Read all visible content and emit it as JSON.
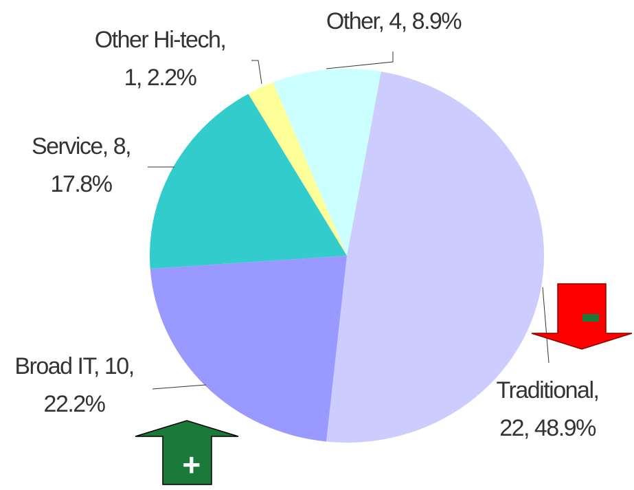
{
  "chart_data": {
    "type": "pie",
    "categories": [
      "Traditional",
      "Broad IT",
      "Service",
      "Other Hi-tech",
      "Other"
    ],
    "values": [
      22,
      10,
      8,
      1,
      4
    ],
    "colors": [
      "#ccccff",
      "#9999ff",
      "#33cccc",
      "#ffff99",
      "#ccffff"
    ],
    "data_labels": [
      [
        "Traditional,",
        "22, 48.9%"
      ],
      [
        "Broad IT, 10,",
        "22.2%"
      ],
      [
        "Service, 8,",
        "17.8%"
      ],
      [
        "Other Hi-tech,",
        "1, 2.2%"
      ],
      [
        "Other, 4, 8.9%"
      ]
    ],
    "annotations": [
      "-",
      "+"
    ]
  }
}
